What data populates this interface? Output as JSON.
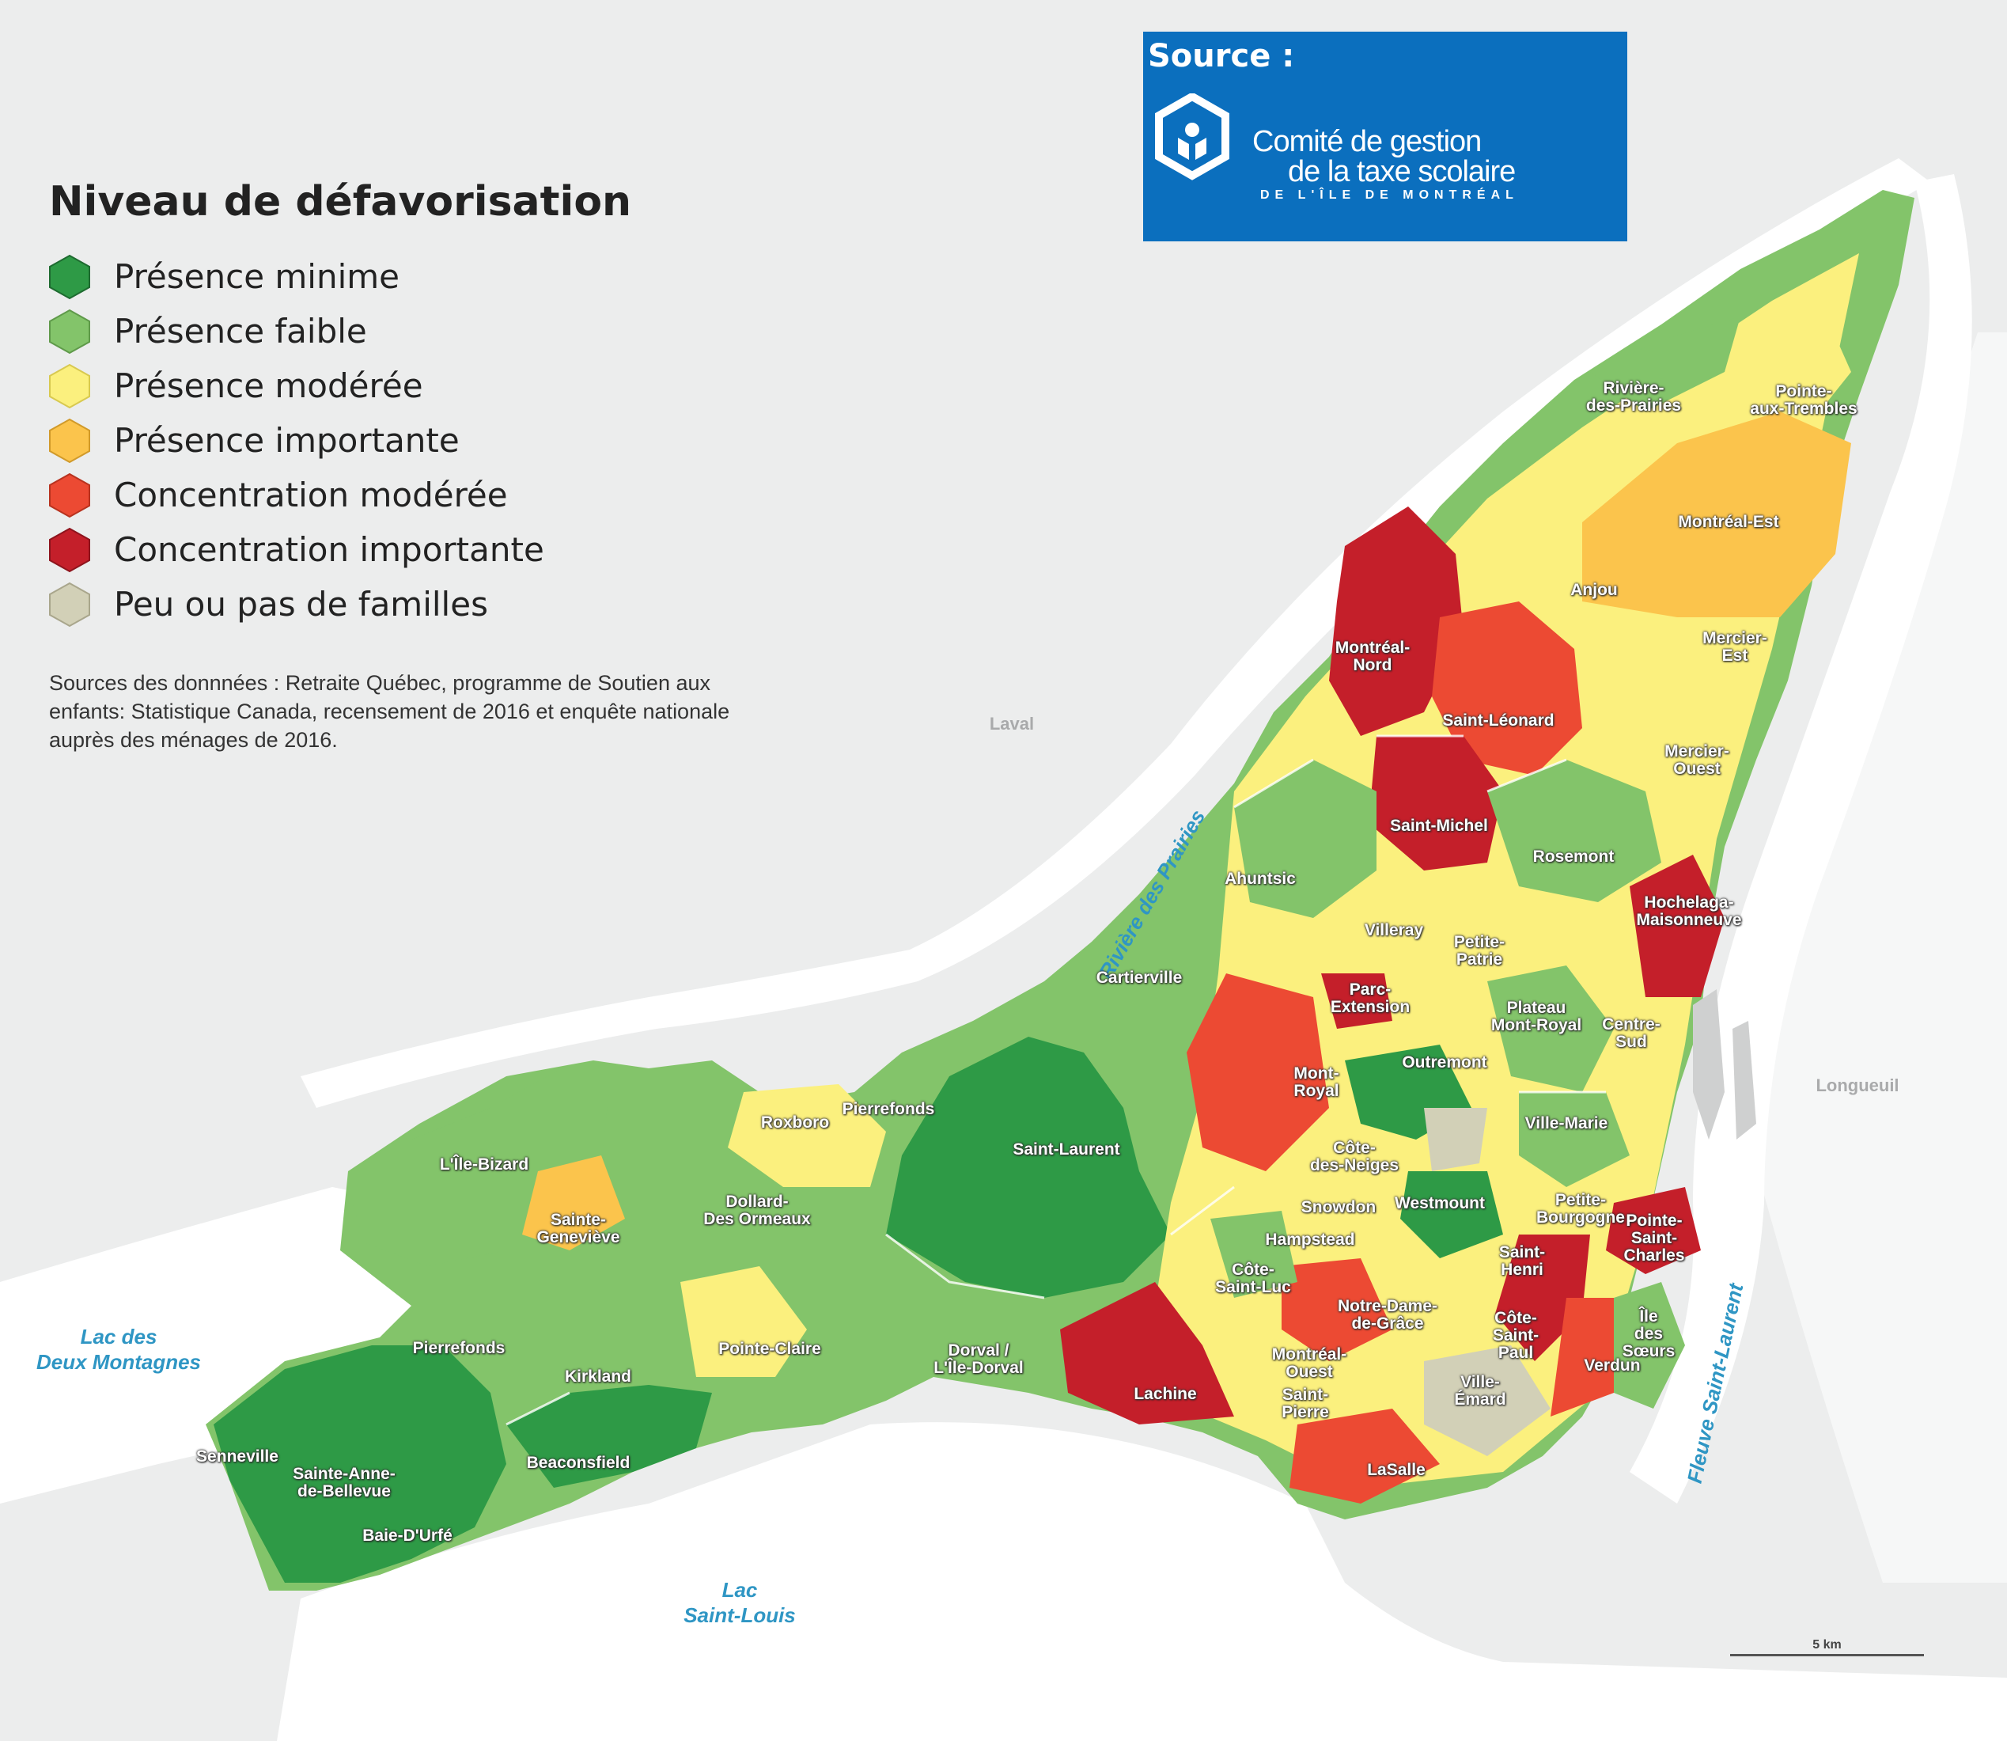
{
  "legend": {
    "title": "Niveau de défavorisation",
    "items": [
      {
        "label": "Présence minime",
        "color": "#2e9a46"
      },
      {
        "label": "Présence faible",
        "color": "#83c46a"
      },
      {
        "label": "Présence modérée",
        "color": "#fbf07e"
      },
      {
        "label": "Présence importante",
        "color": "#fbc44c"
      },
      {
        "label": "Concentration modérée",
        "color": "#ec4a33"
      },
      {
        "label": "Concentration importante",
        "color": "#c41f2a"
      },
      {
        "label": "Peu ou pas de familles",
        "color": "#d2d0b7"
      }
    ]
  },
  "sources_text": "Sources des donnnées :  Retraite Québec, programme de Soutien aux enfants: Statistique Canada, recensement de 2016 et enquête nationale auprès des ménages de 2016.",
  "source_box": {
    "heading": "Source :",
    "org_line1": "Comité de gestion",
    "org_line2": "de la taxe scolaire",
    "org_line3": "DE L'ÎLE DE MONTRÉAL",
    "color": "#0b6fbe"
  },
  "regions": [
    "Laval",
    "Longueuil"
  ],
  "water_labels": {
    "lac_deux_montagnes": "Lac des\nDeux Montagnes",
    "lac_saint_louis": "Lac\nSaint-Louis",
    "riviere_des_prairies": "Rivière des Prairies",
    "fleuve_saint_laurent": "Fleuve Saint-Laurent"
  },
  "places": [
    "Rivière-\ndes-Prairies",
    "Pointe-\naux-Trembles",
    "Montréal-Est",
    "Anjou",
    "Montréal-\nNord",
    "Mercier-\nEst",
    "Saint-Léonard",
    "Mercier-\nOuest",
    "Saint-Michel",
    "Rosemont",
    "Ahuntsic",
    "Hochelaga-\nMaisonneuve",
    "Villeray",
    "Petite-\nPatrie",
    "Cartierville",
    "Parc-\nExtension",
    "Plateau\nMont-Royal",
    "Centre-\nSud",
    "Outremont",
    "Mont-\nRoyal",
    "Ville-Marie",
    "Roxboro",
    "Pierrefonds",
    "Saint-Laurent",
    "L'Île-Bizard",
    "Côte-\ndes-Neiges",
    "Dollard-\nDes Ormeaux",
    "Sainte-\nGeneviève",
    "Snowdon",
    "Westmount",
    "Petite-\nBourgogne",
    "Pointe-\nSaint-\nCharles",
    "Hampstead",
    "Côte-\nSaint-Luc",
    "Saint-\nHenri",
    "Notre-Dame-\nde-Grâce",
    "Côte-\nSaint-\nPaul",
    "Île\ndes\nSœurs",
    "Pierrefonds",
    "Pointe-Claire",
    "Dorval /\nL'Île-Dorval",
    "Montréal-\nOuest",
    "Verdun",
    "Kirkland",
    "Lachine",
    "Saint-\nPierre",
    "Ville-\nÉmard",
    "Senneville",
    "Sainte-Anne-\nde-Bellevue",
    "Beaconsfield",
    "LaSalle",
    "Baie-D'Urfé"
  ],
  "scale_label": "5 km"
}
